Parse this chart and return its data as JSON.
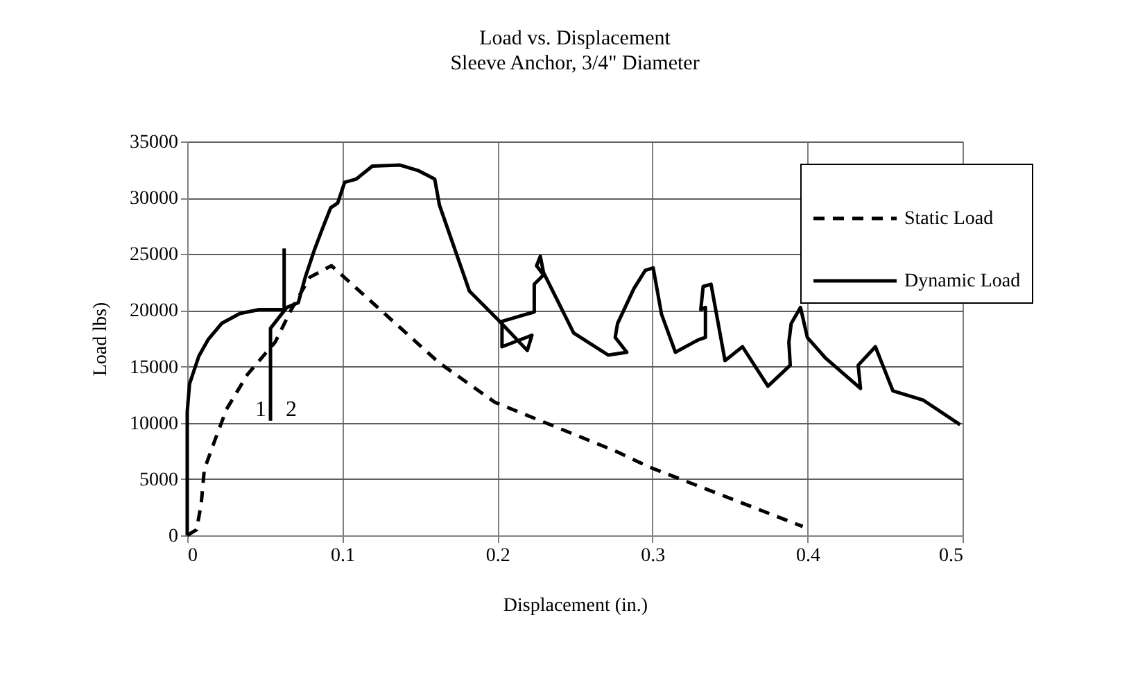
{
  "chart_data": {
    "type": "line",
    "title": "Load vs. Displacement",
    "subtitle": "Sleeve Anchor, 3/4\" Diameter",
    "xlabel": "Displacement (in.)",
    "ylabel": "Load lbs)",
    "xlim": [
      0,
      0.5
    ],
    "xticks": [
      0,
      0.1,
      0.2,
      0.3,
      0.4,
      0.5
    ],
    "ylim": [
      0,
      35000
    ],
    "yticks": [
      0,
      5000,
      10000,
      15000,
      20000,
      25000,
      30000,
      35000
    ],
    "grid": true,
    "legend": "top right",
    "marker": "none",
    "annotations": [
      "1",
      "2"
    ],
    "series": [
      {
        "name": "Static Load",
        "color": "#000000",
        "line_style": "dashed",
        "x": [
          0,
          0.006,
          0.009,
          0.011,
          0.018,
          0.0253,
          0.0388,
          0.0567,
          0.0671,
          0.079,
          0.093,
          0.1627,
          0.1985,
          0.276,
          0.2984,
          0.3969
        ],
        "values": [
          0,
          500,
          2770,
          5850,
          8520,
          11200,
          14290,
          17170,
          20060,
          22930,
          23960,
          15310,
          11820,
          7500,
          6050,
          790
        ]
      },
      {
        "name": "Dynamic Load",
        "color": "#000000",
        "line_style": "solid",
        "x": [
          0,
          0,
          0.0015,
          0.0075,
          0.0134,
          0.0224,
          0.034,
          0.0463,
          0.0625,
          0.0625,
          null,
          0.0537,
          0.0537,
          0.0642,
          0.0716,
          0.0761,
          0.0821,
          0.0866,
          0.0925,
          0.097,
          0.1015,
          0.109,
          0.1194,
          0.1373,
          0.1492,
          0.1596,
          0.1627,
          0.182,
          0.2014,
          0.2193,
          0.2223,
          0.203,
          0.203,
          0.2238,
          0.2238,
          0.2298,
          0.2253,
          0.2277,
          0.2298,
          0.2492,
          0.2715,
          0.2835,
          0.276,
          0.2775,
          0.288,
          0.2954,
          0.3005,
          0.3059,
          0.3148,
          0.3268,
          0.3297,
          0.3342,
          0.3342,
          0.3312,
          0.3327,
          0.3378,
          0.3468,
          0.3581,
          0.3745,
          0.3889,
          0.388,
          0.3895,
          0.3955,
          0.3999,
          0.4118,
          0.4342,
          0.4327,
          0.4438,
          0.4551,
          0.4745,
          0.4984
        ],
        "values": [
          0,
          11000,
          13460,
          15930,
          17380,
          18860,
          19720,
          20060,
          20060,
          25490,
          null,
          10180,
          18400,
          20250,
          20670,
          22930,
          25400,
          27050,
          29110,
          29520,
          31370,
          31660,
          32810,
          32900,
          32400,
          31660,
          29320,
          21700,
          19020,
          16430,
          17780,
          16760,
          19020,
          19850,
          22320,
          23140,
          23960,
          24790,
          23340,
          17990,
          16020,
          16270,
          17590,
          18820,
          21910,
          23550,
          23760,
          19640,
          16270,
          17170,
          17380,
          17590,
          20250,
          20060,
          22110,
          22320,
          15530,
          16760,
          13260,
          15120,
          17170,
          18820,
          20250,
          17590,
          15730,
          13050,
          15120,
          16760,
          12840,
          12030,
          9840
        ]
      }
    ]
  }
}
